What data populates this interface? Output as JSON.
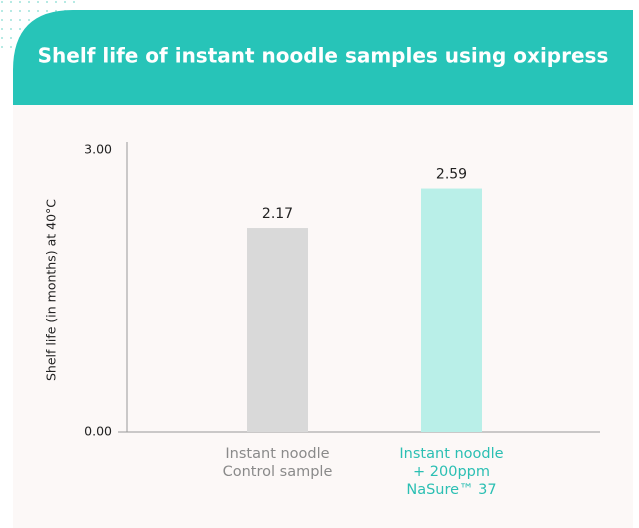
{
  "chart_data": {
    "type": "bar",
    "title": "Shelf life of instant noodle samples using oxipress",
    "y_label": "Shelf life (in months) at 40°C",
    "categories": [
      [
        "Instant noodle",
        "Control sample"
      ],
      [
        "Instant noodle",
        "+ 200ppm",
        "NaSure™ 37"
      ]
    ],
    "values": [
      2.17,
      2.59
    ],
    "colors": [
      "#d9d9d9",
      "#b9efe8"
    ],
    "label_colors": [
      "#8a8a8a",
      "#2bbfb3"
    ],
    "ylim": [
      0,
      3
    ],
    "yticks": [
      {
        "value": 0,
        "label": "0.00"
      },
      {
        "value": 3,
        "label": "3.00"
      }
    ],
    "grid": false
  }
}
